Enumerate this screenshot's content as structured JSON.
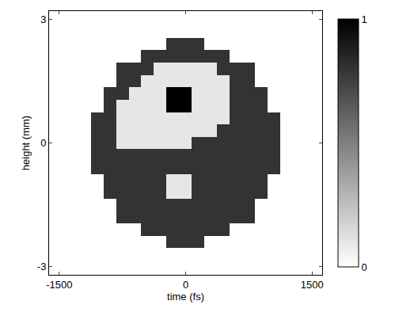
{
  "chart_data": {
    "type": "heatmap",
    "xlabel": "time (fs)",
    "ylabel": "height (mm)",
    "x": [
      -1500,
      -1350,
      -1200,
      -1050,
      -900,
      -750,
      -600,
      -450,
      -300,
      -150,
      0,
      150,
      300,
      450,
      600,
      750,
      900,
      1050,
      1200,
      1350,
      1500
    ],
    "y": [
      -3,
      -2.7,
      -2.4,
      -2.1,
      -1.8,
      -1.5,
      -1.2,
      -0.9,
      -0.6,
      -0.3,
      0,
      0.3,
      0.6,
      0.9,
      1.2,
      1.5,
      1.8,
      2.1,
      2.4,
      2.7,
      3
    ],
    "cells": [
      [
        0,
        0,
        0,
        0,
        0,
        0,
        0,
        0,
        0,
        0,
        0,
        0,
        0,
        0,
        0,
        0,
        0,
        0,
        0,
        0,
        0
      ],
      [
        0,
        0,
        0,
        0,
        0,
        0,
        0,
        0,
        0,
        0,
        0,
        0,
        0,
        0,
        0,
        0,
        0,
        0,
        0,
        0,
        0
      ],
      [
        0,
        0,
        0,
        0,
        0,
        0,
        0,
        0,
        0,
        0.8,
        0.8,
        0.8,
        0,
        0,
        0,
        0,
        0,
        0,
        0,
        0,
        0
      ],
      [
        0,
        0,
        0,
        0,
        0,
        0,
        0,
        0.8,
        0.8,
        0.8,
        0.8,
        0.8,
        0.8,
        0.8,
        0,
        0,
        0,
        0,
        0,
        0,
        0
      ],
      [
        0,
        0,
        0,
        0,
        0,
        0.8,
        0.8,
        0.8,
        0.8,
        0.8,
        0.8,
        0.8,
        0.8,
        0.8,
        0.8,
        0.8,
        0,
        0,
        0,
        0,
        0
      ],
      [
        0,
        0,
        0,
        0,
        0,
        0.8,
        0.8,
        0.8,
        0.8,
        0.8,
        0.8,
        0.8,
        0.8,
        0.8,
        0.8,
        0.8,
        0,
        0,
        0,
        0,
        0
      ],
      [
        0,
        0,
        0,
        0,
        0.8,
        0.8,
        0.8,
        0.8,
        0.8,
        0.1,
        0.1,
        0.8,
        0.8,
        0.8,
        0.8,
        0.8,
        0.8,
        0,
        0,
        0,
        0
      ],
      [
        0,
        0,
        0,
        0,
        0.8,
        0.8,
        0.8,
        0.8,
        0.8,
        0.1,
        0.1,
        0.8,
        0.8,
        0.8,
        0.8,
        0.8,
        0.8,
        0,
        0,
        0,
        0
      ],
      [
        0,
        0,
        0,
        0.8,
        0.8,
        0.8,
        0.8,
        0.8,
        0.8,
        0.8,
        0.8,
        0.8,
        0.8,
        0.8,
        0.8,
        0.8,
        0.8,
        0.8,
        0,
        0,
        0
      ],
      [
        0,
        0,
        0,
        0.8,
        0.8,
        0.8,
        0.8,
        0.8,
        0.8,
        0.8,
        0.8,
        0.8,
        0.8,
        0.8,
        0.8,
        0.8,
        0.8,
        0.8,
        0,
        0,
        0
      ],
      [
        0,
        0,
        0,
        0.8,
        0.8,
        0.1,
        0.1,
        0.1,
        0.1,
        0.1,
        0.1,
        0.8,
        0.8,
        0.8,
        0.8,
        0.8,
        0.8,
        0.8,
        0,
        0,
        0
      ],
      [
        0,
        0,
        0,
        0.8,
        0.8,
        0.1,
        0.1,
        0.1,
        0.1,
        0.1,
        0.1,
        0.1,
        0.1,
        0.8,
        0.8,
        0.8,
        0.8,
        0.8,
        0,
        0,
        0
      ],
      [
        0,
        0,
        0,
        0.8,
        0.8,
        0.1,
        0.1,
        0.1,
        0.1,
        0.1,
        0.1,
        0.1,
        0.1,
        0.1,
        0.8,
        0.8,
        0.8,
        0.8,
        0,
        0,
        0
      ],
      [
        0,
        0,
        0,
        0,
        0.8,
        0.1,
        0.1,
        0.1,
        0.1,
        1,
        1,
        0.1,
        0.1,
        0.1,
        0.8,
        0.8,
        0.8,
        0,
        0,
        0,
        0
      ],
      [
        0,
        0,
        0,
        0,
        0.8,
        0.8,
        0.1,
        0.1,
        0.1,
        1,
        1,
        0.1,
        0.1,
        0.1,
        0.8,
        0.8,
        0.8,
        0,
        0,
        0,
        0
      ],
      [
        0,
        0,
        0,
        0,
        0,
        0.8,
        0.8,
        0.1,
        0.1,
        0.1,
        0.1,
        0.1,
        0.1,
        0.1,
        0.8,
        0.8,
        0,
        0,
        0,
        0,
        0
      ],
      [
        0,
        0,
        0,
        0,
        0,
        0.8,
        0.8,
        0.8,
        0.1,
        0.1,
        0.1,
        0.1,
        0.1,
        0.8,
        0.8,
        0.8,
        0,
        0,
        0,
        0,
        0
      ],
      [
        0,
        0,
        0,
        0,
        0,
        0,
        0,
        0.8,
        0.8,
        0.8,
        0.8,
        0.8,
        0.8,
        0.8,
        0,
        0,
        0,
        0,
        0,
        0,
        0
      ],
      [
        0,
        0,
        0,
        0,
        0,
        0,
        0,
        0,
        0,
        0.8,
        0.8,
        0.8,
        0,
        0,
        0,
        0,
        0,
        0,
        0,
        0,
        0
      ],
      [
        0,
        0,
        0,
        0,
        0,
        0,
        0,
        0,
        0,
        0,
        0,
        0,
        0,
        0,
        0,
        0,
        0,
        0,
        0,
        0,
        0
      ],
      [
        0,
        0,
        0,
        0,
        0,
        0,
        0,
        0,
        0,
        0,
        0,
        0,
        0,
        0,
        0,
        0,
        0,
        0,
        0,
        0,
        0
      ]
    ],
    "colorbar": {
      "range": [
        0,
        1
      ],
      "ticks": [
        0,
        1
      ]
    },
    "xlim": [
      -1620,
      1620
    ],
    "ylim": [
      -3.2,
      3.2
    ],
    "xticks": [
      -1500,
      0,
      1500
    ],
    "yticks": [
      -3,
      0,
      3
    ]
  }
}
